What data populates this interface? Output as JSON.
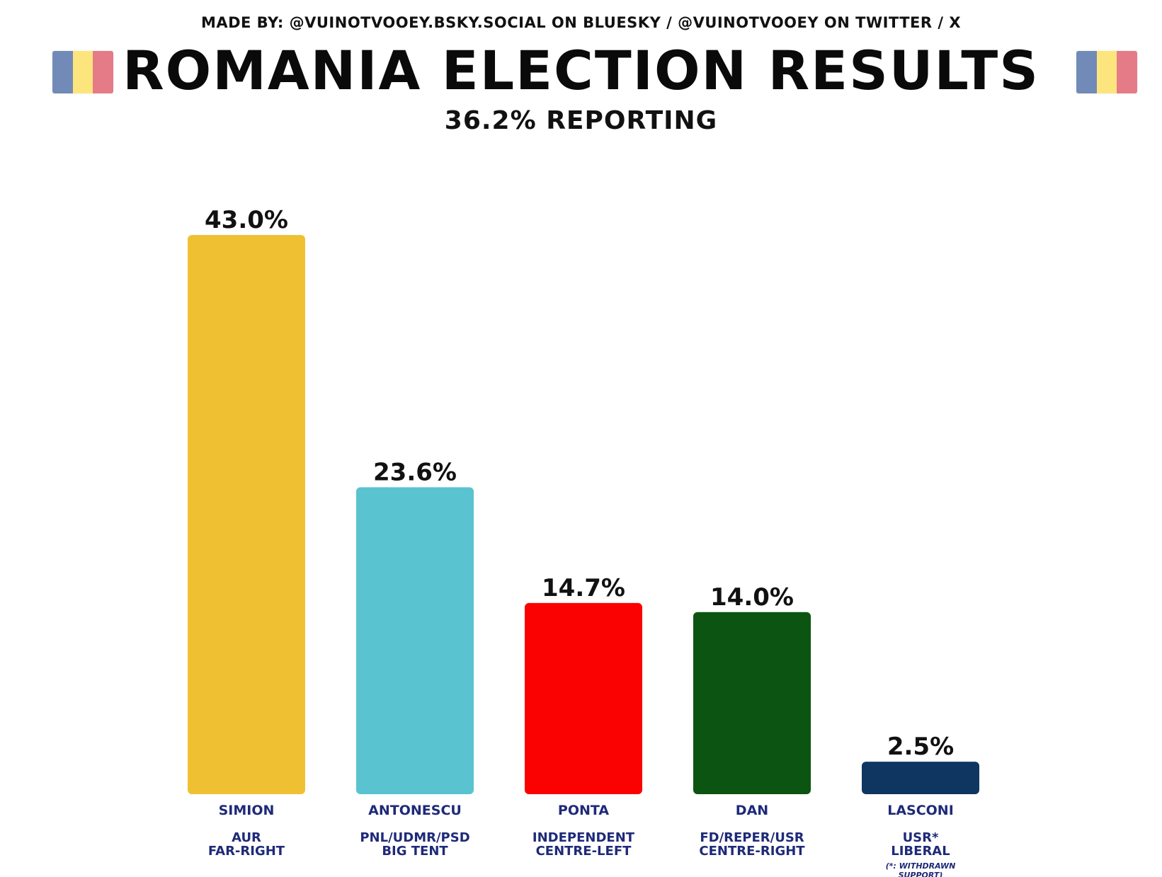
{
  "credit": "MADE BY: @VUINOTVOOEY.BSKY.SOCIAL ON BLUESKY / @VUINOTVOOEY ON TWITTER / X",
  "title": "ROMANIA ELECTION RESULTS",
  "subtitle": "36.2% REPORTING",
  "flag_colors": [
    "#002B7F",
    "#FCD116",
    "#CE1126"
  ],
  "chart_data": {
    "type": "bar",
    "title": "ROMANIA ELECTION RESULTS",
    "subtitle": "36.2% REPORTING",
    "categories": [
      "SIMION",
      "ANTONESCU",
      "PONTA",
      "DAN",
      "LASCONI"
    ],
    "values": [
      43.0,
      23.6,
      14.7,
      14.0,
      2.5
    ],
    "value_labels": [
      "43.0%",
      "23.6%",
      "14.7%",
      "14.0%",
      "2.5%"
    ],
    "party_lines": [
      [
        "AUR",
        "FAR-RIGHT"
      ],
      [
        "PNL/UDMR/PSD",
        "BIG TENT"
      ],
      [
        "INDEPENDENT",
        "CENTRE-LEFT"
      ],
      [
        "FD/REPER/USR",
        "CENTRE-RIGHT"
      ],
      [
        "USR*",
        "LIBERAL"
      ]
    ],
    "notes": [
      "",
      "",
      "",
      "",
      "(*: WITHDRAWN SUPPORT)"
    ],
    "colors": [
      "#EFC132",
      "#5AC3D0",
      "#FA0202",
      "#0C5412",
      "#0F3561"
    ],
    "xlabel": "",
    "ylabel": "",
    "grid": false,
    "legend": "none"
  }
}
